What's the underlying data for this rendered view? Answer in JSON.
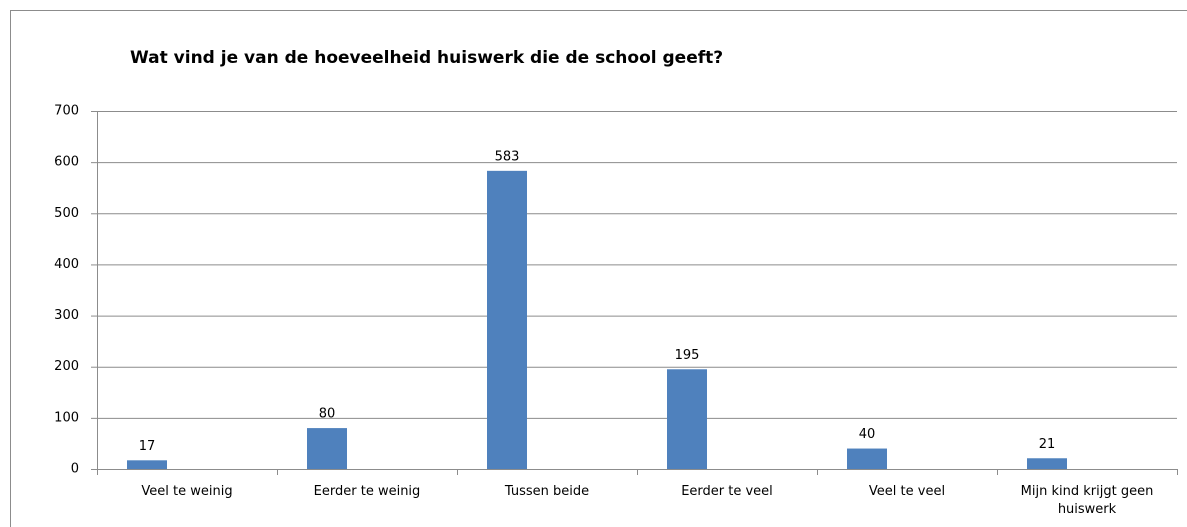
{
  "chart_data": {
    "type": "bar",
    "title": "Wat vind je van de hoeveelheid huiswerk die de school geeft?",
    "categories": [
      "Veel te weinig",
      "Eerder te weinig",
      "Tussen beide",
      "Eerder te veel",
      "Veel te veel",
      "Mijn kind krijgt geen huiswerk"
    ],
    "values": [
      17,
      80,
      583,
      195,
      40,
      21
    ],
    "color": "#4f81bd",
    "ylim": [
      0,
      700
    ],
    "yticks": [
      0,
      100,
      200,
      300,
      400,
      500,
      600,
      700
    ],
    "grid": true
  }
}
